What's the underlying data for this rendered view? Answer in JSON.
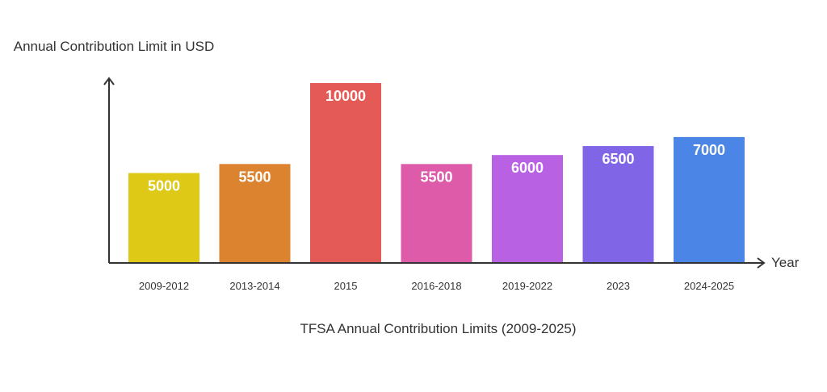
{
  "chart_data": {
    "type": "bar",
    "title": "TFSA Annual Contribution Limits (2009-2025)",
    "ylabel": "Annual Contribution Limit in USD",
    "xlabel": "Year",
    "categories": [
      "2009-2012",
      "2013-2014",
      "2015",
      "2016-2018",
      "2019-2022",
      "2023",
      "2024-2025"
    ],
    "values": [
      5000,
      5500,
      10000,
      5500,
      6000,
      6500,
      7000
    ],
    "colors": [
      "#DDC916",
      "#DB832F",
      "#E35A56",
      "#DE5BA9",
      "#B961E3",
      "#8165E7",
      "#4B86E6"
    ],
    "ylim": [
      0,
      10200
    ],
    "grid": false,
    "legend": "none"
  }
}
